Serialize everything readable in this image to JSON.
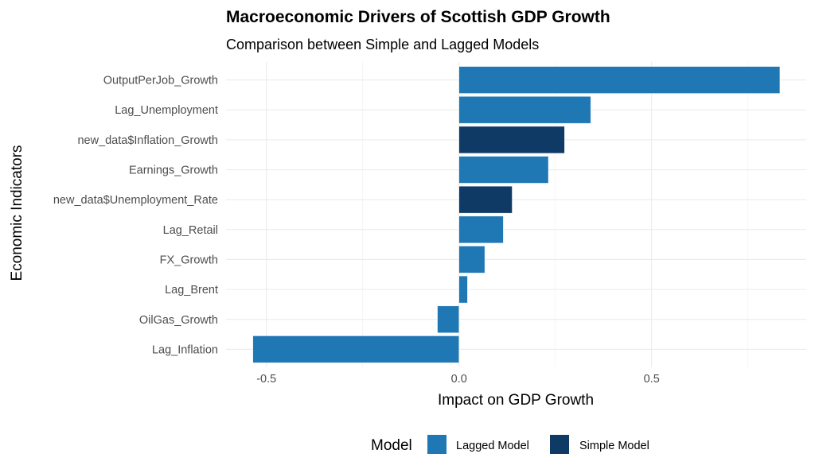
{
  "chart_data": {
    "type": "bar",
    "orientation": "horizontal",
    "title": "Macroeconomic Drivers of Scottish GDP Growth",
    "subtitle": "Comparison between Simple and Lagged Models",
    "xlabel": "Impact on GDP Growth",
    "ylabel": "Economic Indicators",
    "xlim": [
      -0.57,
      0.87
    ],
    "x_ticks": [
      -0.5,
      0.0,
      0.5
    ],
    "x_tick_labels": [
      "-0.5",
      "0.0",
      "0.5"
    ],
    "grid": true,
    "legend": {
      "title": "Model",
      "position": "bottom",
      "entries": [
        {
          "name": "Lagged Model",
          "color": "#1f77b4"
        },
        {
          "name": "Simple Model",
          "color": "#0e3a65"
        }
      ]
    },
    "categories": [
      "OutputPerJob_Growth",
      "Lag_Unemployment",
      "new_data$Inflation_Growth",
      "Earnings_Growth",
      "new_data$Unemployment_Rate",
      "Lag_Retail",
      "FX_Growth",
      "Lag_Brent",
      "OilGas_Growth",
      "Lag_Inflation"
    ],
    "values": [
      0.833,
      0.342,
      0.274,
      0.232,
      0.138,
      0.115,
      0.067,
      0.022,
      -0.056,
      -0.535
    ],
    "models": [
      "Lagged Model",
      "Lagged Model",
      "Simple Model",
      "Lagged Model",
      "Simple Model",
      "Lagged Model",
      "Lagged Model",
      "Lagged Model",
      "Lagged Model",
      "Lagged Model"
    ]
  }
}
